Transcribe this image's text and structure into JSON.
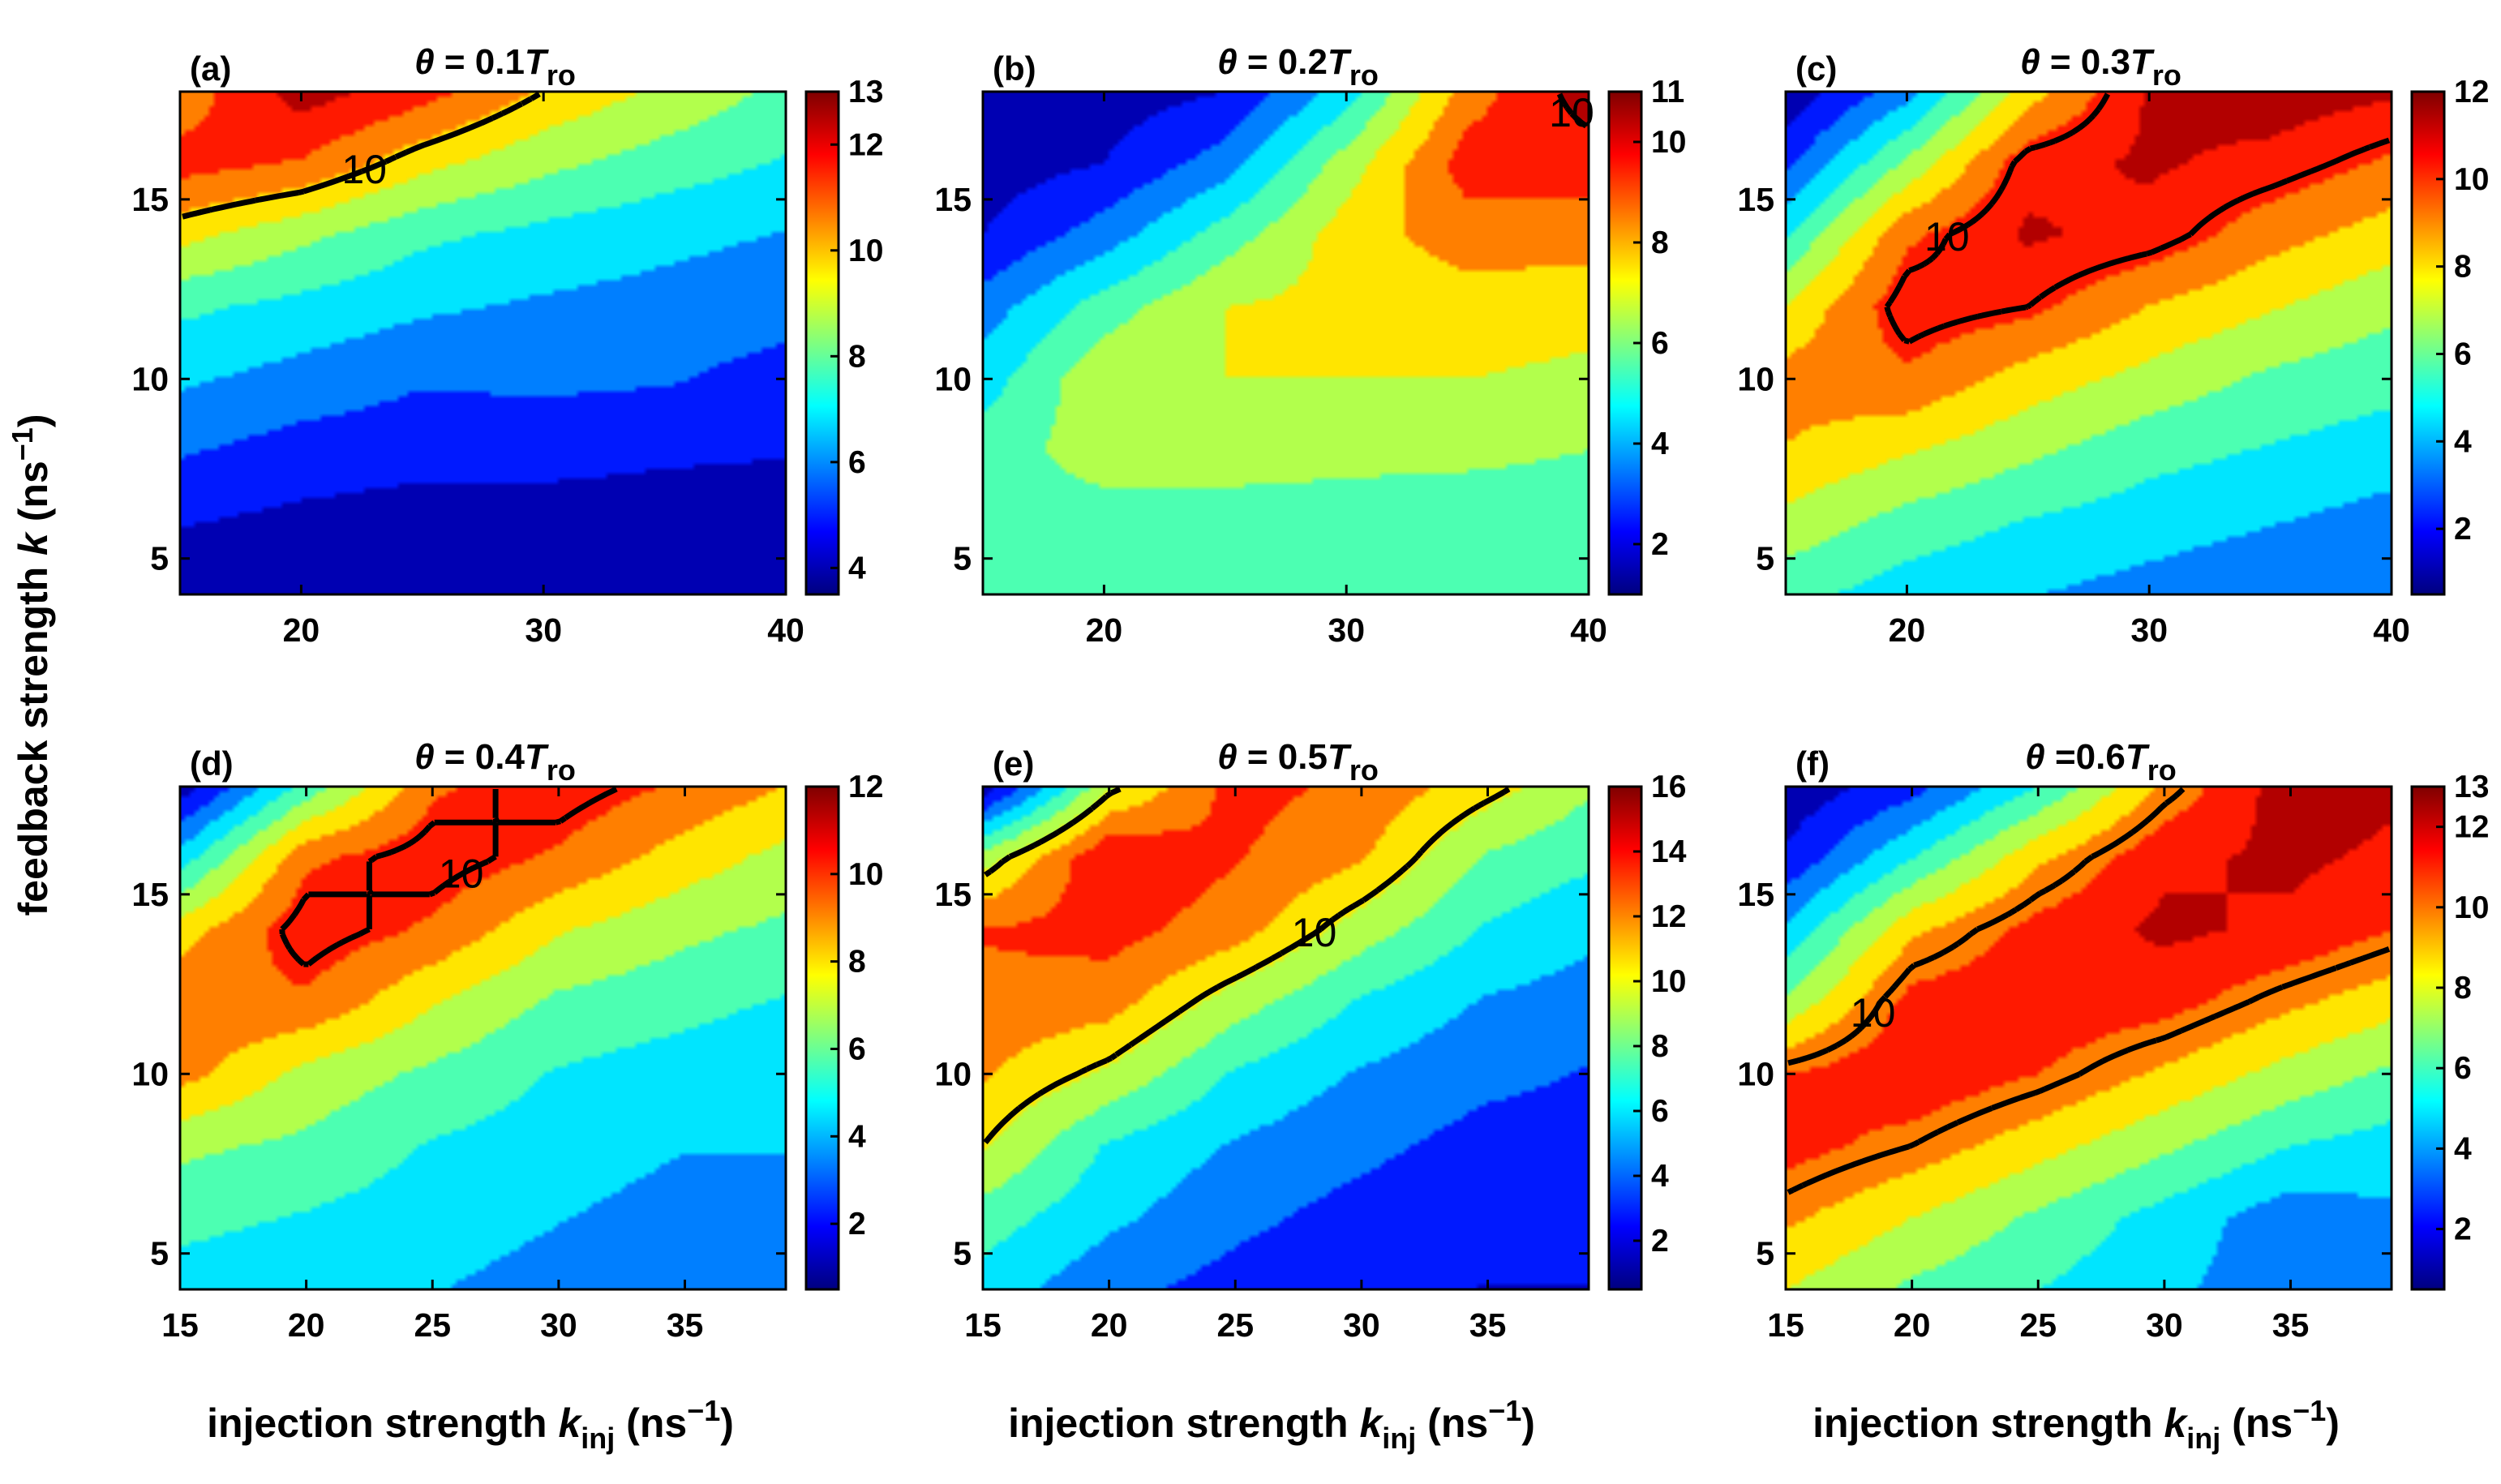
{
  "figure": {
    "ylabel": {
      "prefix": "feedback strength ",
      "var": "k",
      "unit_open": " (ns",
      "unit_exp": "−1",
      "unit_close": ")"
    },
    "xlabel": {
      "prefix": "injection strength ",
      "var": "k",
      "sub": "inj",
      "unit_open": " (ns",
      "unit_exp": "−1",
      "unit_close": ")"
    }
  },
  "colors": {
    "jet": [
      "#00007f",
      "#0000ff",
      "#007fff",
      "#00ffff",
      "#7fff7f",
      "#ffff00",
      "#ff7f00",
      "#ff0000",
      "#7f0000"
    ],
    "contour_line": "#000000"
  },
  "chart_data": [
    {
      "type": "heatmap",
      "panel": "(a)",
      "title": {
        "prefix": "θ = 0.1",
        "T": "T",
        "sub": "ro"
      },
      "xlim": [
        15,
        40
      ],
      "ylim": [
        4,
        18
      ],
      "xticks": [
        20,
        30,
        40
      ],
      "yticks": [
        5,
        10,
        15
      ],
      "clim": [
        3.5,
        13
      ],
      "cticks": [
        4,
        6,
        8,
        10,
        12,
        13
      ],
      "contour_label": "10",
      "x": [
        15,
        20,
        25,
        30,
        35,
        40
      ],
      "y": [
        4,
        6,
        8,
        10,
        12,
        14,
        16,
        18
      ],
      "z": [
        [
          4.0,
          4.0,
          3.8,
          3.8,
          3.8,
          3.8
        ],
        [
          4.5,
          4.2,
          4.0,
          4.0,
          4.0,
          4.0
        ],
        [
          5.5,
          5.0,
          4.8,
          4.8,
          4.6,
          4.5
        ],
        [
          6.5,
          6.0,
          5.5,
          5.6,
          5.5,
          5.0
        ],
        [
          7.5,
          7.0,
          6.5,
          6.2,
          6.0,
          5.8
        ],
        [
          9.5,
          8.5,
          7.5,
          7.0,
          6.6,
          6.3
        ],
        [
          11.5,
          11.0,
          9.5,
          8.5,
          7.8,
          7.2
        ],
        [
          10.5,
          12.5,
          11.5,
          10.0,
          9.0,
          8.0
        ]
      ]
    },
    {
      "type": "heatmap",
      "panel": "(b)",
      "title": {
        "prefix": "θ = 0.2",
        "T": "T",
        "sub": "ro"
      },
      "xlim": [
        15,
        40
      ],
      "ylim": [
        4,
        18
      ],
      "xticks": [
        20,
        30,
        40
      ],
      "yticks": [
        5,
        10,
        15
      ],
      "clim": [
        1,
        11
      ],
      "cticks": [
        2,
        4,
        6,
        8,
        10,
        11
      ],
      "contour_label": "10",
      "x": [
        15,
        20,
        25,
        30,
        35,
        40
      ],
      "y": [
        4,
        6,
        8,
        10,
        12,
        14,
        16,
        18
      ],
      "z": [
        [
          5.0,
          5.0,
          5.0,
          5.0,
          5.0,
          5.0
        ],
        [
          5.5,
          5.5,
          5.5,
          5.5,
          5.5,
          5.5
        ],
        [
          5.5,
          6.5,
          6.5,
          6.3,
          6.2,
          6.0
        ],
        [
          4.5,
          6.8,
          7.0,
          7.0,
          7.0,
          6.8
        ],
        [
          3.5,
          5.5,
          7.0,
          7.3,
          7.5,
          7.3
        ],
        [
          2.0,
          3.5,
          5.5,
          7.5,
          8.5,
          8.5
        ],
        [
          1.5,
          2.0,
          3.5,
          6.5,
          9.5,
          9.5
        ],
        [
          1.5,
          1.5,
          2.0,
          4.5,
          8.5,
          10.5
        ]
      ]
    },
    {
      "type": "heatmap",
      "panel": "(c)",
      "title": {
        "prefix": "θ = 0.3",
        "T": "T",
        "sub": "ro"
      },
      "xlim": [
        15,
        40
      ],
      "ylim": [
        4,
        18
      ],
      "xticks": [
        20,
        30,
        40
      ],
      "yticks": [
        5,
        10,
        15
      ],
      "clim": [
        0.5,
        12
      ],
      "cticks": [
        2,
        4,
        6,
        8,
        10,
        12
      ],
      "contour_label": "10",
      "x": [
        15,
        20,
        25,
        30,
        35,
        40
      ],
      "y": [
        4,
        6,
        8,
        10,
        12,
        14,
        16,
        18
      ],
      "z": [
        [
          5.5,
          4.5,
          4.0,
          3.5,
          3.0,
          3.0
        ],
        [
          7.0,
          5.8,
          5.0,
          4.5,
          4.0,
          3.5
        ],
        [
          8.5,
          7.5,
          6.5,
          5.5,
          5.0,
          4.5
        ],
        [
          9.0,
          9.5,
          8.0,
          7.0,
          6.0,
          5.5
        ],
        [
          7.5,
          10.5,
          10.0,
          8.5,
          7.5,
          6.5
        ],
        [
          5.0,
          9.5,
          11.0,
          10.5,
          9.0,
          8.0
        ],
        [
          2.5,
          6.5,
          10.5,
          11.0,
          10.5,
          9.5
        ],
        [
          0.8,
          3.5,
          8.0,
          11.0,
          11.5,
          11.0
        ]
      ]
    },
    {
      "type": "heatmap",
      "panel": "(d)",
      "title": {
        "prefix": "θ = 0.4",
        "T": "T",
        "sub": "ro"
      },
      "xlim": [
        15,
        39
      ],
      "ylim": [
        4,
        18
      ],
      "xticks": [
        15,
        20,
        25,
        30,
        35
      ],
      "yticks": [
        5,
        10,
        15
      ],
      "clim": [
        0.5,
        12
      ],
      "cticks": [
        2,
        4,
        6,
        8,
        10,
        12
      ],
      "contour_label": "10",
      "x": [
        15,
        20,
        25,
        30,
        35,
        39
      ],
      "y": [
        4,
        6,
        8,
        10,
        12,
        14,
        16,
        18
      ],
      "z": [
        [
          4.5,
          4.0,
          4.0,
          3.5,
          3.5,
          3.5
        ],
        [
          5.5,
          5.0,
          4.5,
          4.0,
          3.5,
          3.5
        ],
        [
          6.5,
          6.0,
          5.0,
          4.5,
          4.0,
          4.0
        ],
        [
          9.0,
          7.0,
          6.0,
          5.0,
          4.5,
          4.0
        ],
        [
          9.5,
          9.5,
          7.5,
          6.0,
          5.5,
          5.0
        ],
        [
          8.0,
          10.5,
          9.5,
          7.5,
          6.5,
          6.0
        ],
        [
          4.5,
          9.5,
          10.5,
          9.5,
          8.0,
          7.0
        ],
        [
          1.0,
          5.5,
          9.5,
          10.5,
          9.5,
          8.5
        ]
      ]
    },
    {
      "type": "heatmap",
      "panel": "(e)",
      "title": {
        "prefix": "θ = 0.5",
        "T": "T",
        "sub": "ro"
      },
      "xlim": [
        15,
        39
      ],
      "ylim": [
        4,
        18
      ],
      "xticks": [
        15,
        20,
        25,
        30,
        35
      ],
      "yticks": [
        5,
        10,
        15
      ],
      "clim": [
        0.5,
        16
      ],
      "cticks": [
        2,
        4,
        6,
        8,
        10,
        12,
        14,
        16
      ],
      "contour_label": "10",
      "x": [
        15,
        20,
        25,
        30,
        35,
        39
      ],
      "y": [
        4,
        6,
        8,
        10,
        12,
        14,
        16,
        18
      ],
      "z": [
        [
          6.0,
          4.0,
          3.0,
          2.5,
          2.0,
          2.0
        ],
        [
          7.5,
          5.5,
          4.0,
          3.0,
          2.5,
          2.5
        ],
        [
          10.0,
          6.5,
          5.0,
          4.0,
          3.0,
          3.0
        ],
        [
          11.5,
          9.5,
          6.5,
          5.0,
          4.0,
          3.5
        ],
        [
          12.5,
          12.0,
          9.0,
          6.5,
          5.0,
          4.5
        ],
        [
          13.0,
          13.5,
          12.0,
          9.0,
          6.5,
          5.5
        ],
        [
          9.0,
          14.5,
          13.0,
          11.5,
          8.0,
          7.0
        ],
        [
          1.0,
          9.5,
          13.5,
          12.5,
          10.5,
          8.5
        ]
      ]
    },
    {
      "type": "heatmap",
      "panel": "(f)",
      "title": {
        "prefix": "θ =0.6",
        "T": "T",
        "sub": "ro"
      },
      "xlim": [
        15,
        39
      ],
      "ylim": [
        4,
        18
      ],
      "xticks": [
        15,
        20,
        25,
        30,
        35
      ],
      "yticks": [
        5,
        10,
        15
      ],
      "clim": [
        0.5,
        13
      ],
      "cticks": [
        2,
        4,
        6,
        8,
        10,
        12,
        13
      ],
      "contour_label": "10",
      "x": [
        15,
        20,
        25,
        30,
        35,
        39
      ],
      "y": [
        4,
        6,
        8,
        10,
        12,
        14,
        16,
        18
      ],
      "z": [
        [
          8.0,
          6.5,
          5.5,
          4.5,
          3.5,
          3.5
        ],
        [
          9.5,
          8.0,
          6.5,
          5.0,
          3.5,
          4.0
        ],
        [
          11.0,
          10.0,
          8.5,
          7.0,
          5.5,
          5.0
        ],
        [
          10.5,
          11.5,
          10.5,
          9.0,
          7.5,
          6.5
        ],
        [
          7.0,
          11.0,
          11.5,
          11.0,
          9.5,
          8.5
        ],
        [
          4.5,
          9.0,
          11.0,
          12.0,
          11.5,
          10.5
        ],
        [
          2.0,
          5.5,
          9.0,
          11.5,
          12.0,
          11.5
        ],
        [
          0.8,
          2.5,
          5.5,
          9.5,
          12.5,
          12.0
        ]
      ]
    }
  ]
}
